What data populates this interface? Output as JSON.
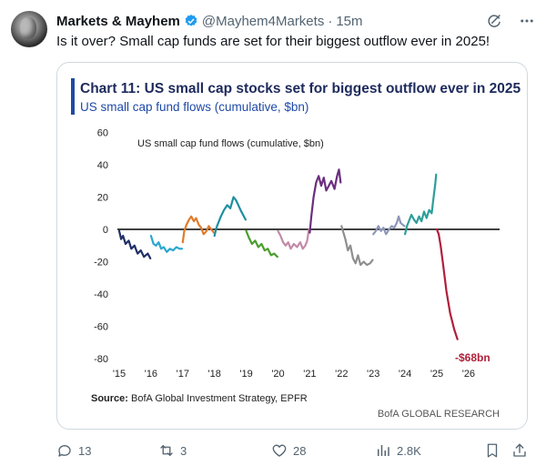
{
  "post": {
    "author_name": "Markets & Mayhem",
    "handle": "@Mayhem4Markets",
    "separator": "·",
    "time": "15m",
    "text": "Is it over? Small cap funds are set for their biggest outflow ever in 2025!"
  },
  "chart_data": {
    "type": "line",
    "title": "Chart 11: US small cap stocks set for biggest outflow ever in 2025",
    "subtitle": "US small cap fund flows (cumulative, $bn)",
    "inner_title": "US small cap fund flows (cumulative, $bn)",
    "source_label": "Source:",
    "source_text": " BofA Global Investment Strategy, EPFR",
    "brand": "BofA GLOBAL RESEARCH",
    "annotation": "-$68bn",
    "ylim": [
      -80,
      60
    ],
    "yticks": [
      "60",
      "40",
      "20",
      "0",
      "-20",
      "-40",
      "-60",
      "-80"
    ],
    "xticks": [
      "'15",
      "'16",
      "'17",
      "'18",
      "'19",
      "'20",
      "'21",
      "'22",
      "'23",
      "'24",
      "'25",
      "'26"
    ],
    "grid": false,
    "series": [
      {
        "color": "#1f2f66",
        "points": [
          [
            2015.0,
            -1
          ],
          [
            2015.06,
            -6
          ],
          [
            2015.12,
            -4
          ],
          [
            2015.2,
            -9
          ],
          [
            2015.3,
            -7
          ],
          [
            2015.38,
            -12
          ],
          [
            2015.48,
            -10
          ],
          [
            2015.58,
            -15
          ],
          [
            2015.68,
            -13
          ],
          [
            2015.78,
            -17
          ],
          [
            2015.9,
            -15
          ],
          [
            2015.98,
            -18
          ]
        ]
      },
      {
        "color": "#2aa7cf",
        "points": [
          [
            2016.0,
            -4
          ],
          [
            2016.08,
            -9
          ],
          [
            2016.16,
            -10
          ],
          [
            2016.24,
            -8
          ],
          [
            2016.32,
            -12
          ],
          [
            2016.4,
            -11
          ],
          [
            2016.5,
            -14
          ],
          [
            2016.6,
            -12
          ],
          [
            2016.7,
            -13
          ],
          [
            2016.8,
            -11
          ],
          [
            2016.9,
            -12
          ],
          [
            2016.98,
            -12
          ]
        ]
      },
      {
        "color": "#e07b2a",
        "points": [
          [
            2017.0,
            -8
          ],
          [
            2017.05,
            -1
          ],
          [
            2017.12,
            3
          ],
          [
            2017.2,
            6
          ],
          [
            2017.27,
            8
          ],
          [
            2017.35,
            5
          ],
          [
            2017.42,
            7
          ],
          [
            2017.5,
            3
          ],
          [
            2017.58,
            1
          ],
          [
            2017.66,
            -3
          ],
          [
            2017.75,
            -1
          ],
          [
            2017.82,
            2
          ],
          [
            2017.9,
            0
          ],
          [
            2017.98,
            -2
          ]
        ]
      },
      {
        "color": "#1e8fa0",
        "points": [
          [
            2018.0,
            -4
          ],
          [
            2018.06,
            1
          ],
          [
            2018.12,
            4
          ],
          [
            2018.2,
            8
          ],
          [
            2018.3,
            12
          ],
          [
            2018.4,
            15
          ],
          [
            2018.5,
            13
          ],
          [
            2018.6,
            20
          ],
          [
            2018.68,
            18
          ],
          [
            2018.75,
            15
          ],
          [
            2018.82,
            12
          ],
          [
            2018.9,
            9
          ],
          [
            2018.98,
            6
          ]
        ]
      },
      {
        "color": "#4a9e2f",
        "points": [
          [
            2019.0,
            -1
          ],
          [
            2019.08,
            -5
          ],
          [
            2019.18,
            -9
          ],
          [
            2019.28,
            -7
          ],
          [
            2019.38,
            -11
          ],
          [
            2019.48,
            -9
          ],
          [
            2019.58,
            -13
          ],
          [
            2019.68,
            -12
          ],
          [
            2019.78,
            -16
          ],
          [
            2019.88,
            -15
          ],
          [
            2019.98,
            -17
          ]
        ]
      },
      {
        "color": "#c28aa8",
        "points": [
          [
            2020.0,
            -1
          ],
          [
            2020.08,
            -4
          ],
          [
            2020.16,
            -8
          ],
          [
            2020.24,
            -10
          ],
          [
            2020.32,
            -8
          ],
          [
            2020.4,
            -12
          ],
          [
            2020.5,
            -9
          ],
          [
            2020.6,
            -11
          ],
          [
            2020.7,
            -8
          ],
          [
            2020.78,
            -12
          ],
          [
            2020.86,
            -10
          ],
          [
            2020.92,
            -7
          ],
          [
            2020.97,
            0
          ]
        ]
      },
      {
        "color": "#6a2f7e",
        "points": [
          [
            2021.0,
            -2
          ],
          [
            2021.05,
            8
          ],
          [
            2021.12,
            20
          ],
          [
            2021.2,
            29
          ],
          [
            2021.28,
            33
          ],
          [
            2021.36,
            27
          ],
          [
            2021.44,
            32
          ],
          [
            2021.52,
            24
          ],
          [
            2021.6,
            27
          ],
          [
            2021.68,
            30
          ],
          [
            2021.78,
            25
          ],
          [
            2021.86,
            33
          ],
          [
            2021.92,
            37
          ],
          [
            2021.97,
            29
          ]
        ]
      },
      {
        "color": "#8f8f8f",
        "points": [
          [
            2022.0,
            2
          ],
          [
            2022.06,
            -2
          ],
          [
            2022.12,
            -6
          ],
          [
            2022.2,
            -13
          ],
          [
            2022.28,
            -10
          ],
          [
            2022.36,
            -18
          ],
          [
            2022.44,
            -21
          ],
          [
            2022.52,
            -16
          ],
          [
            2022.6,
            -22
          ],
          [
            2022.7,
            -20
          ],
          [
            2022.8,
            -22
          ],
          [
            2022.9,
            -21
          ],
          [
            2022.98,
            -19
          ]
        ]
      },
      {
        "color": "#8d97b8",
        "points": [
          [
            2023.0,
            -3
          ],
          [
            2023.08,
            -1
          ],
          [
            2023.16,
            2
          ],
          [
            2023.24,
            -1
          ],
          [
            2023.32,
            1
          ],
          [
            2023.4,
            -3
          ],
          [
            2023.5,
            0
          ],
          [
            2023.58,
            2
          ],
          [
            2023.66,
            1
          ],
          [
            2023.74,
            4
          ],
          [
            2023.8,
            8
          ],
          [
            2023.86,
            4
          ],
          [
            2023.92,
            3
          ],
          [
            2023.98,
            2
          ]
        ]
      },
      {
        "color": "#2e9e9a",
        "points": [
          [
            2024.0,
            -3
          ],
          [
            2024.06,
            2
          ],
          [
            2024.12,
            5
          ],
          [
            2024.2,
            9
          ],
          [
            2024.28,
            6
          ],
          [
            2024.36,
            4
          ],
          [
            2024.44,
            8
          ],
          [
            2024.52,
            5
          ],
          [
            2024.6,
            11
          ],
          [
            2024.68,
            7
          ],
          [
            2024.76,
            12
          ],
          [
            2024.84,
            10
          ],
          [
            2024.9,
            20
          ],
          [
            2024.95,
            28
          ],
          [
            2024.98,
            34
          ]
        ]
      },
      {
        "color": "#b01f3a",
        "points": [
          [
            2025.0,
            0
          ],
          [
            2025.06,
            -3
          ],
          [
            2025.12,
            -10
          ],
          [
            2025.2,
            -22
          ],
          [
            2025.3,
            -38
          ],
          [
            2025.42,
            -52
          ],
          [
            2025.55,
            -62
          ],
          [
            2025.65,
            -68
          ]
        ]
      }
    ]
  }
}
